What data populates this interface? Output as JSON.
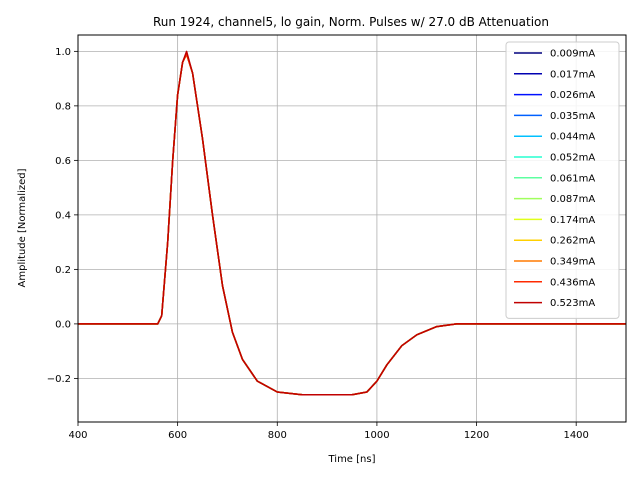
{
  "chart_data": {
    "type": "line",
    "title": "Run 1924, channel5, lo gain, Norm. Pulses w/ 27.0 dB Attenuation",
    "xlabel": "Time [ns]",
    "ylabel": "Amplitude [Normalized]",
    "xlim": [
      400,
      1500
    ],
    "ylim": [
      -0.36,
      1.06
    ],
    "xticks": [
      400,
      600,
      800,
      1000,
      1200,
      1400
    ],
    "yticks": [
      -0.2,
      0.0,
      0.2,
      0.4,
      0.6,
      0.8,
      1.0
    ],
    "ytick_labels": [
      "−0.2",
      "0.0",
      "0.2",
      "0.4",
      "0.6",
      "0.8",
      "1.0"
    ],
    "grid": true,
    "legend_position": "top-right",
    "x": [
      400,
      560,
      568,
      580,
      590,
      600,
      610,
      618,
      630,
      650,
      670,
      690,
      710,
      730,
      760,
      800,
      850,
      900,
      950,
      980,
      1000,
      1020,
      1050,
      1080,
      1120,
      1160,
      1200,
      1300,
      1400,
      1500
    ],
    "series": [
      {
        "name": "0.009mA",
        "color": "#00007f",
        "values": [
          0.0,
          0.0,
          0.03,
          0.3,
          0.6,
          0.84,
          0.96,
          0.99,
          0.92,
          0.68,
          0.4,
          0.14,
          -0.03,
          -0.13,
          -0.21,
          -0.25,
          -0.26,
          -0.26,
          -0.26,
          -0.25,
          -0.21,
          -0.15,
          -0.08,
          -0.04,
          -0.01,
          0.0,
          0.0,
          0.0,
          0.0,
          0.0
        ]
      },
      {
        "name": "0.017mA",
        "color": "#0000b2",
        "values": [
          0.0,
          0.0,
          0.03,
          0.3,
          0.6,
          0.84,
          0.96,
          0.99,
          0.92,
          0.68,
          0.4,
          0.14,
          -0.03,
          -0.13,
          -0.21,
          -0.25,
          -0.26,
          -0.26,
          -0.26,
          -0.25,
          -0.21,
          -0.15,
          -0.08,
          -0.04,
          -0.01,
          0.0,
          0.0,
          0.0,
          0.0,
          0.0
        ]
      },
      {
        "name": "0.026mA",
        "color": "#0010ff",
        "values": [
          0.0,
          0.0,
          0.03,
          0.3,
          0.6,
          0.84,
          0.96,
          0.99,
          0.92,
          0.68,
          0.4,
          0.14,
          -0.03,
          -0.13,
          -0.21,
          -0.25,
          -0.26,
          -0.26,
          -0.26,
          -0.25,
          -0.21,
          -0.15,
          -0.08,
          -0.04,
          -0.01,
          0.0,
          0.0,
          0.0,
          0.0,
          0.0
        ]
      },
      {
        "name": "0.035mA",
        "color": "#0060ff",
        "values": [
          0.0,
          0.0,
          0.03,
          0.3,
          0.6,
          0.84,
          0.96,
          0.99,
          0.92,
          0.68,
          0.4,
          0.14,
          -0.03,
          -0.13,
          -0.21,
          -0.25,
          -0.26,
          -0.26,
          -0.26,
          -0.25,
          -0.21,
          -0.15,
          -0.08,
          -0.04,
          -0.01,
          0.0,
          0.0,
          0.0,
          0.0,
          0.0
        ]
      },
      {
        "name": "0.044mA",
        "color": "#00c0ff",
        "values": [
          0.0,
          0.0,
          0.03,
          0.3,
          0.6,
          0.84,
          0.96,
          0.99,
          0.92,
          0.68,
          0.4,
          0.14,
          -0.03,
          -0.13,
          -0.21,
          -0.25,
          -0.26,
          -0.26,
          -0.26,
          -0.25,
          -0.21,
          -0.15,
          -0.08,
          -0.04,
          -0.01,
          0.0,
          0.0,
          0.0,
          0.0,
          0.0
        ]
      },
      {
        "name": "0.052mA",
        "color": "#27ffd0",
        "values": [
          0.0,
          0.0,
          0.03,
          0.3,
          0.6,
          0.84,
          0.96,
          0.99,
          0.92,
          0.68,
          0.4,
          0.14,
          -0.03,
          -0.13,
          -0.21,
          -0.25,
          -0.26,
          -0.26,
          -0.26,
          -0.25,
          -0.21,
          -0.15,
          -0.08,
          -0.04,
          -0.01,
          0.0,
          0.0,
          0.0,
          0.0,
          0.0
        ]
      },
      {
        "name": "0.061mA",
        "color": "#5effa0",
        "values": [
          0.0,
          0.0,
          0.03,
          0.3,
          0.6,
          0.84,
          0.96,
          0.99,
          0.92,
          0.68,
          0.4,
          0.14,
          -0.03,
          -0.13,
          -0.21,
          -0.25,
          -0.26,
          -0.26,
          -0.26,
          -0.25,
          -0.21,
          -0.15,
          -0.08,
          -0.04,
          -0.01,
          0.0,
          0.0,
          0.0,
          0.0,
          0.0
        ]
      },
      {
        "name": "0.087mA",
        "color": "#a0ff5e",
        "values": [
          0.0,
          0.0,
          0.03,
          0.3,
          0.6,
          0.84,
          0.96,
          0.99,
          0.92,
          0.68,
          0.4,
          0.14,
          -0.03,
          -0.13,
          -0.21,
          -0.25,
          -0.26,
          -0.26,
          -0.26,
          -0.25,
          -0.21,
          -0.15,
          -0.08,
          -0.04,
          -0.01,
          0.0,
          0.0,
          0.0,
          0.0,
          0.0
        ]
      },
      {
        "name": "0.174mA",
        "color": "#e0ff1a",
        "values": [
          0.0,
          0.0,
          0.03,
          0.3,
          0.6,
          0.84,
          0.96,
          0.99,
          0.92,
          0.68,
          0.4,
          0.14,
          -0.03,
          -0.13,
          -0.21,
          -0.25,
          -0.26,
          -0.26,
          -0.26,
          -0.25,
          -0.21,
          -0.15,
          -0.08,
          -0.04,
          -0.01,
          0.0,
          0.0,
          0.0,
          0.0,
          0.0
        ]
      },
      {
        "name": "0.262mA",
        "color": "#ffd000",
        "values": [
          0.0,
          0.0,
          0.03,
          0.3,
          0.6,
          0.84,
          0.96,
          0.99,
          0.92,
          0.68,
          0.4,
          0.14,
          -0.03,
          -0.13,
          -0.21,
          -0.25,
          -0.26,
          -0.26,
          -0.26,
          -0.25,
          -0.21,
          -0.15,
          -0.08,
          -0.04,
          -0.01,
          0.0,
          0.0,
          0.0,
          0.0,
          0.0
        ]
      },
      {
        "name": "0.349mA",
        "color": "#ff7a00",
        "values": [
          0.0,
          0.0,
          0.03,
          0.3,
          0.6,
          0.84,
          0.96,
          0.99,
          0.92,
          0.68,
          0.4,
          0.14,
          -0.03,
          -0.13,
          -0.21,
          -0.25,
          -0.26,
          -0.26,
          -0.26,
          -0.25,
          -0.21,
          -0.15,
          -0.08,
          -0.04,
          -0.01,
          0.0,
          0.0,
          0.0,
          0.0,
          0.0
        ]
      },
      {
        "name": "0.436mA",
        "color": "#ff2a00",
        "values": [
          0.0,
          0.0,
          0.03,
          0.3,
          0.6,
          0.84,
          0.96,
          0.99,
          0.92,
          0.68,
          0.4,
          0.14,
          -0.03,
          -0.13,
          -0.21,
          -0.25,
          -0.26,
          -0.26,
          -0.26,
          -0.25,
          -0.21,
          -0.15,
          -0.08,
          -0.04,
          -0.01,
          0.0,
          0.0,
          0.0,
          0.0,
          0.0
        ]
      },
      {
        "name": "0.523mA",
        "color": "#c00000",
        "values": [
          0.0,
          0.0,
          0.03,
          0.3,
          0.6,
          0.84,
          0.96,
          1.0,
          0.92,
          0.68,
          0.4,
          0.14,
          -0.03,
          -0.13,
          -0.21,
          -0.25,
          -0.26,
          -0.26,
          -0.26,
          -0.25,
          -0.21,
          -0.15,
          -0.08,
          -0.04,
          -0.01,
          0.0,
          0.0,
          0.0,
          0.0,
          0.0
        ]
      }
    ]
  }
}
